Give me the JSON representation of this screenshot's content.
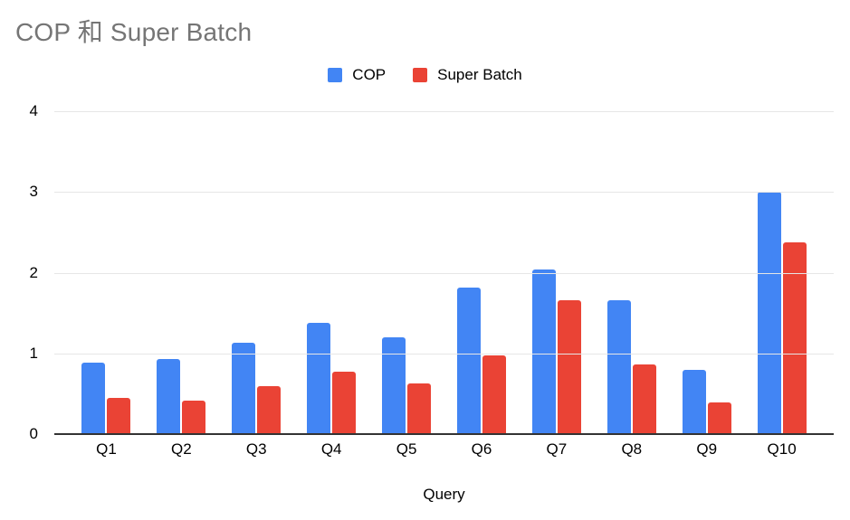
{
  "title": "COP 和 Super Batch",
  "colors": {
    "background": "#ffffff",
    "title_text": "#757575",
    "axis_text": "#000000",
    "gridline": "#e6e6e6",
    "axis_line": "#333333",
    "series_cop": "#4285f4",
    "series_super_batch": "#ea4335"
  },
  "chart_data": {
    "type": "bar",
    "title": "COP 和 Super Batch",
    "xlabel": "Query",
    "ylabel": "",
    "ylim": [
      0,
      4
    ],
    "yticks": [
      0,
      1,
      2,
      3,
      4
    ],
    "grid": true,
    "legend_position": "top-center",
    "categories": [
      "Q1",
      "Q2",
      "Q3",
      "Q4",
      "Q5",
      "Q6",
      "Q7",
      "Q8",
      "Q9",
      "Q10"
    ],
    "series": [
      {
        "name": "COP",
        "color": "#4285f4",
        "values": [
          0.88,
          0.93,
          1.13,
          1.38,
          1.2,
          1.82,
          2.04,
          1.66,
          0.8,
          3.0
        ]
      },
      {
        "name": "Super Batch",
        "color": "#ea4335",
        "values": [
          0.45,
          0.41,
          0.59,
          0.77,
          0.63,
          0.97,
          1.66,
          0.86,
          0.39,
          2.37
        ]
      }
    ]
  }
}
